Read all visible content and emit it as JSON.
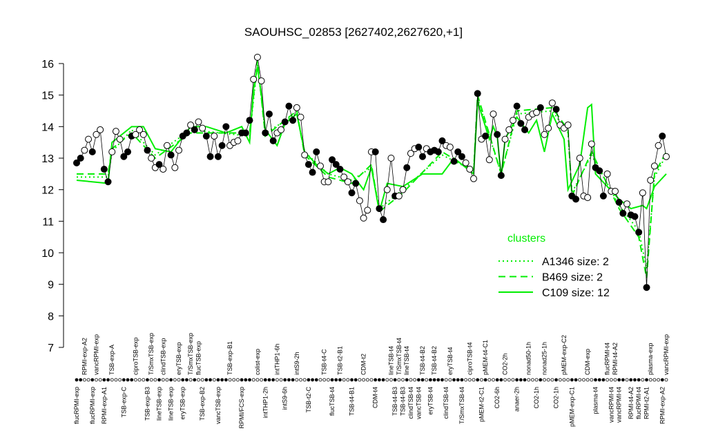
{
  "chart_data": {
    "type": "scatter",
    "title": "SAOUHSC_02853 [2627402,2627620,+1]",
    "ylim": [
      7,
      16
    ],
    "yticks": [
      7,
      8,
      9,
      10,
      11,
      12,
      13,
      14,
      15,
      16
    ],
    "values": [
      12.85,
      13.0,
      13.25,
      13.6,
      13.2,
      13.75,
      13.9,
      12.65,
      12.25,
      13.2,
      13.85,
      13.6,
      13.05,
      13.2,
      13.7,
      13.75,
      13.9,
      13.75,
      13.25,
      13.0,
      12.7,
      12.8,
      12.65,
      13.4,
      13.1,
      12.7,
      13.25,
      13.7,
      13.8,
      14.05,
      13.9,
      14.15,
      13.95,
      13.7,
      13.05,
      13.7,
      13.05,
      13.4,
      14.0,
      13.4,
      13.5,
      13.55,
      13.8,
      13.8,
      14.2,
      15.5,
      16.2,
      15.45,
      13.8,
      14.4,
      13.55,
      13.8,
      13.9,
      14.15,
      14.65,
      14.2,
      14.6,
      14.3,
      13.1,
      12.8,
      12.55,
      13.2,
      12.75,
      12.25,
      12.25,
      12.95,
      12.8,
      12.65,
      12.4,
      12.25,
      11.9,
      12.2,
      11.65,
      11.1,
      11.35,
      13.2,
      13.2,
      11.4,
      11.05,
      12.0,
      13.0,
      11.8,
      11.8,
      12.0,
      12.7,
      13.15,
      13.3,
      13.35,
      13.05,
      13.3,
      13.2,
      13.25,
      13.2,
      13.55,
      13.4,
      13.35,
      12.9,
      13.2,
      13.05,
      12.85,
      12.65,
      12.35,
      15.05,
      13.6,
      13.7,
      12.95,
      14.4,
      13.75,
      12.45,
      13.6,
      13.9,
      14.2,
      14.65,
      14.1,
      13.9,
      14.3,
      14.4,
      14.45,
      14.6,
      13.75,
      13.95,
      14.75,
      14.55,
      14.05,
      13.95,
      14.05,
      11.8,
      11.7,
      13.0,
      11.8,
      11.75,
      13.45,
      12.7,
      12.6,
      11.8,
      12.5,
      11.95,
      11.95,
      11.6,
      11.25,
      11.55,
      11.2,
      11.15,
      10.65,
      11.9,
      8.9,
      12.3,
      12.75,
      13.4,
      13.7,
      13.05
    ],
    "filled": [
      1,
      1,
      0,
      0,
      1,
      0,
      0,
      1,
      1,
      0,
      0,
      0,
      1,
      1,
      1,
      0,
      0,
      0,
      1,
      0,
      0,
      1,
      0,
      0,
      1,
      0,
      0,
      1,
      1,
      0,
      1,
      0,
      0,
      1,
      1,
      0,
      1,
      1,
      1,
      0,
      0,
      0,
      1,
      1,
      1,
      0,
      0,
      0,
      1,
      1,
      1,
      0,
      0,
      1,
      1,
      1,
      0,
      0,
      0,
      1,
      1,
      1,
      0,
      0,
      0,
      1,
      1,
      1,
      0,
      0,
      1,
      1,
      0,
      0,
      0,
      0,
      1,
      1,
      1,
      0,
      0,
      1,
      0,
      0,
      1,
      0,
      0,
      1,
      1,
      0,
      1,
      1,
      1,
      1,
      0,
      0,
      1,
      1,
      1,
      0,
      0,
      0,
      1,
      0,
      1,
      0,
      0,
      1,
      1,
      0,
      0,
      0,
      1,
      1,
      1,
      0,
      0,
      0,
      1,
      0,
      0,
      0,
      1,
      0,
      0,
      0,
      1,
      1,
      0,
      0,
      0,
      0,
      1,
      1,
      1,
      0,
      0,
      0,
      1,
      1,
      0,
      1,
      1,
      1,
      0,
      1,
      0,
      0,
      0,
      1,
      0
    ],
    "xticks_bottom": [
      {
        "value": 0,
        "label": "flucRPMI-exp"
      },
      {
        "value": 4,
        "label": "flucRPMI-exp"
      },
      {
        "value": 7,
        "label": "RPMI-exp-A1"
      },
      {
        "value": 12,
        "label": "TSB-exp-C"
      },
      {
        "value": 18,
        "label": "TSB-exp-B3"
      },
      {
        "value": 21,
        "label": "lineTSB-exp"
      },
      {
        "value": 24,
        "label": "lineTSB-exp"
      },
      {
        "value": 27,
        "label": "eryTSB-exp"
      },
      {
        "value": 32,
        "label": "TSB-exp-B2"
      },
      {
        "value": 36,
        "label": "vancTSB-exp"
      },
      {
        "value": 42,
        "label": "RPMI/FCS-exp"
      },
      {
        "value": 48,
        "label": "intTHP1-2h"
      },
      {
        "value": 53,
        "label": "intS9-6h"
      },
      {
        "value": 59,
        "label": "TSB-t2-C"
      },
      {
        "value": 65,
        "label": "flucTSB-t4"
      },
      {
        "value": 70,
        "label": "TSB-t4-B1"
      },
      {
        "value": 76,
        "label": "CDM-t4"
      },
      {
        "value": 81,
        "label": "TSB-t4-B3"
      },
      {
        "value": 83,
        "label": "TSB-t4-B3"
      },
      {
        "value": 85,
        "label": "clindTSB-t4"
      },
      {
        "value": 87,
        "label": "vancTSB-t4"
      },
      {
        "value": 90,
        "label": "eryTSB-t4"
      },
      {
        "value": 94,
        "label": "clindTSB-t4"
      },
      {
        "value": 98,
        "label": "T/SmxTSB-t4"
      },
      {
        "value": 103,
        "label": "pMEM-t2-C1"
      },
      {
        "value": 107,
        "label": "CO2-6h"
      },
      {
        "value": 112,
        "label": "anaer-2h"
      },
      {
        "value": 117,
        "label": "CO2-1h"
      },
      {
        "value": 122,
        "label": "CO2-1h"
      },
      {
        "value": 126,
        "label": "pMEM-exp-C1"
      },
      {
        "value": 132,
        "label": "plasma-t4"
      },
      {
        "value": 136,
        "label": "vancRPMI-t4"
      },
      {
        "value": 138,
        "label": "vancRPMI-t4"
      },
      {
        "value": 141,
        "label": "RPMI-t4-A2"
      },
      {
        "value": 143,
        "label": "flucRPMI-t4"
      },
      {
        "value": 145,
        "label": "RPMI-t2-A1"
      },
      {
        "value": 149,
        "label": "RPMI-exp-A2"
      }
    ],
    "xticks_top": [
      {
        "value": 2,
        "label": "RPMI-exp-A2"
      },
      {
        "value": 5,
        "label": "vancRPMI-exp"
      },
      {
        "value": 9,
        "label": "TSB-exp-A"
      },
      {
        "value": 15,
        "label": "ciproTSB-exp"
      },
      {
        "value": 19,
        "label": "T/SmxTSB-exp"
      },
      {
        "value": 22,
        "label": "clindTSB-exp"
      },
      {
        "value": 26,
        "label": "eryTSB-exp"
      },
      {
        "value": 29,
        "label": "T/SmxTSB-exp"
      },
      {
        "value": 31,
        "label": "flucTSB-exp"
      },
      {
        "value": 39,
        "label": "TSB-exp-B1"
      },
      {
        "value": 46,
        "label": "colist-exp"
      },
      {
        "value": 51,
        "label": "intTHP1-6h"
      },
      {
        "value": 56,
        "label": "intS9-2h"
      },
      {
        "value": 63,
        "label": "TSB-t4-C"
      },
      {
        "value": 67,
        "label": "TSB-t2-B1"
      },
      {
        "value": 73,
        "label": "CDM-t2"
      },
      {
        "value": 80,
        "label": "lineTSB-t4"
      },
      {
        "value": 82,
        "label": "T/SmxTSB-t4"
      },
      {
        "value": 84,
        "label": "lineTSB-t4"
      },
      {
        "value": 88,
        "label": "TSB-t4-B2"
      },
      {
        "value": 91,
        "label": "TSB-t4-B2"
      },
      {
        "value": 95,
        "label": "eryTSB-t4"
      },
      {
        "value": 100,
        "label": "ciproTSB-t4"
      },
      {
        "value": 104,
        "label": "pMEM-t4-C1"
      },
      {
        "value": 109,
        "label": "CO2-2h"
      },
      {
        "value": 115,
        "label": "nonad50-1h"
      },
      {
        "value": 119,
        "label": "nonad25-1h"
      },
      {
        "value": 124,
        "label": "pMEM-exp-C2"
      },
      {
        "value": 130,
        "label": "CDM-exp"
      },
      {
        "value": 135,
        "label": "flucRPMI-t4"
      },
      {
        "value": 137,
        "label": "RPMI-t4-A2"
      },
      {
        "value": 146,
        "label": "plasma-exp"
      },
      {
        "value": 150,
        "label": "vancRPMI-exp"
      }
    ],
    "legend_title": "clusters",
    "series": [
      {
        "name": "A1346 size: 2",
        "color": "#00ee00",
        "style": "dotted",
        "x": [
          0,
          8,
          9,
          14,
          20,
          29,
          44,
          46,
          48,
          56,
          58,
          64,
          70,
          75,
          77,
          83,
          93,
          101,
          102,
          108,
          112,
          121,
          125,
          126,
          131,
          138,
          143,
          145,
          147,
          150
        ],
        "values": [
          12.4,
          12.4,
          13.2,
          13.9,
          13.1,
          13.9,
          13.7,
          16.0,
          13.8,
          14.4,
          13.2,
          12.5,
          12.3,
          12.7,
          11.4,
          12.0,
          13.1,
          12.6,
          14.9,
          12.5,
          14.4,
          14.5,
          13.8,
          11.9,
          13.1,
          11.5,
          10.7,
          9.5,
          12.4,
          13.1
        ]
      },
      {
        "name": "B469 size: 2",
        "color": "#00ee00",
        "style": "dashed",
        "x": [
          0,
          8,
          9,
          14,
          20,
          29,
          44,
          46,
          48,
          56,
          58,
          64,
          70,
          75,
          77,
          83,
          93,
          101,
          102,
          108,
          112,
          121,
          125,
          126,
          131,
          138,
          143,
          145,
          147,
          150
        ],
        "values": [
          12.5,
          12.5,
          13.3,
          13.8,
          13.0,
          13.8,
          13.8,
          16.1,
          13.7,
          14.5,
          13.1,
          12.4,
          12.2,
          12.8,
          11.3,
          11.9,
          13.2,
          12.6,
          15.0,
          12.5,
          14.5,
          14.6,
          13.9,
          11.8,
          13.2,
          11.4,
          10.5,
          9.2,
          12.5,
          13.2
        ]
      },
      {
        "name": "C109 size: 12",
        "color": "#00ee00",
        "style": "solid",
        "x": [
          0,
          8,
          9,
          14,
          17,
          20,
          24,
          29,
          33,
          38,
          42,
          44,
          45,
          46,
          47,
          48,
          51,
          53,
          56,
          58,
          61,
          64,
          67,
          70,
          73,
          75,
          77,
          79,
          83,
          88,
          93,
          96,
          101,
          102,
          105,
          106,
          107,
          108,
          109,
          112,
          115,
          117,
          119,
          121,
          124,
          125,
          128,
          130,
          131,
          132,
          135,
          138,
          141,
          144,
          145,
          147,
          150
        ],
        "values": [
          12.3,
          12.2,
          13.5,
          14.0,
          14.0,
          13.3,
          13.2,
          14.0,
          14.0,
          13.8,
          14.0,
          13.5,
          15.2,
          15.9,
          15.0,
          13.9,
          13.4,
          14.1,
          14.4,
          13.2,
          12.8,
          12.5,
          12.7,
          12.5,
          12.0,
          12.7,
          11.3,
          12.2,
          12.1,
          12.5,
          12.5,
          13.0,
          12.5,
          14.8,
          13.6,
          14.0,
          13.7,
          12.4,
          13.6,
          14.3,
          13.8,
          14.2,
          13.2,
          14.4,
          13.6,
          12.0,
          12.8,
          14.6,
          14.7,
          12.5,
          12.1,
          11.7,
          11.4,
          11.5,
          11.4,
          12.1,
          12.5
        ]
      }
    ]
  }
}
